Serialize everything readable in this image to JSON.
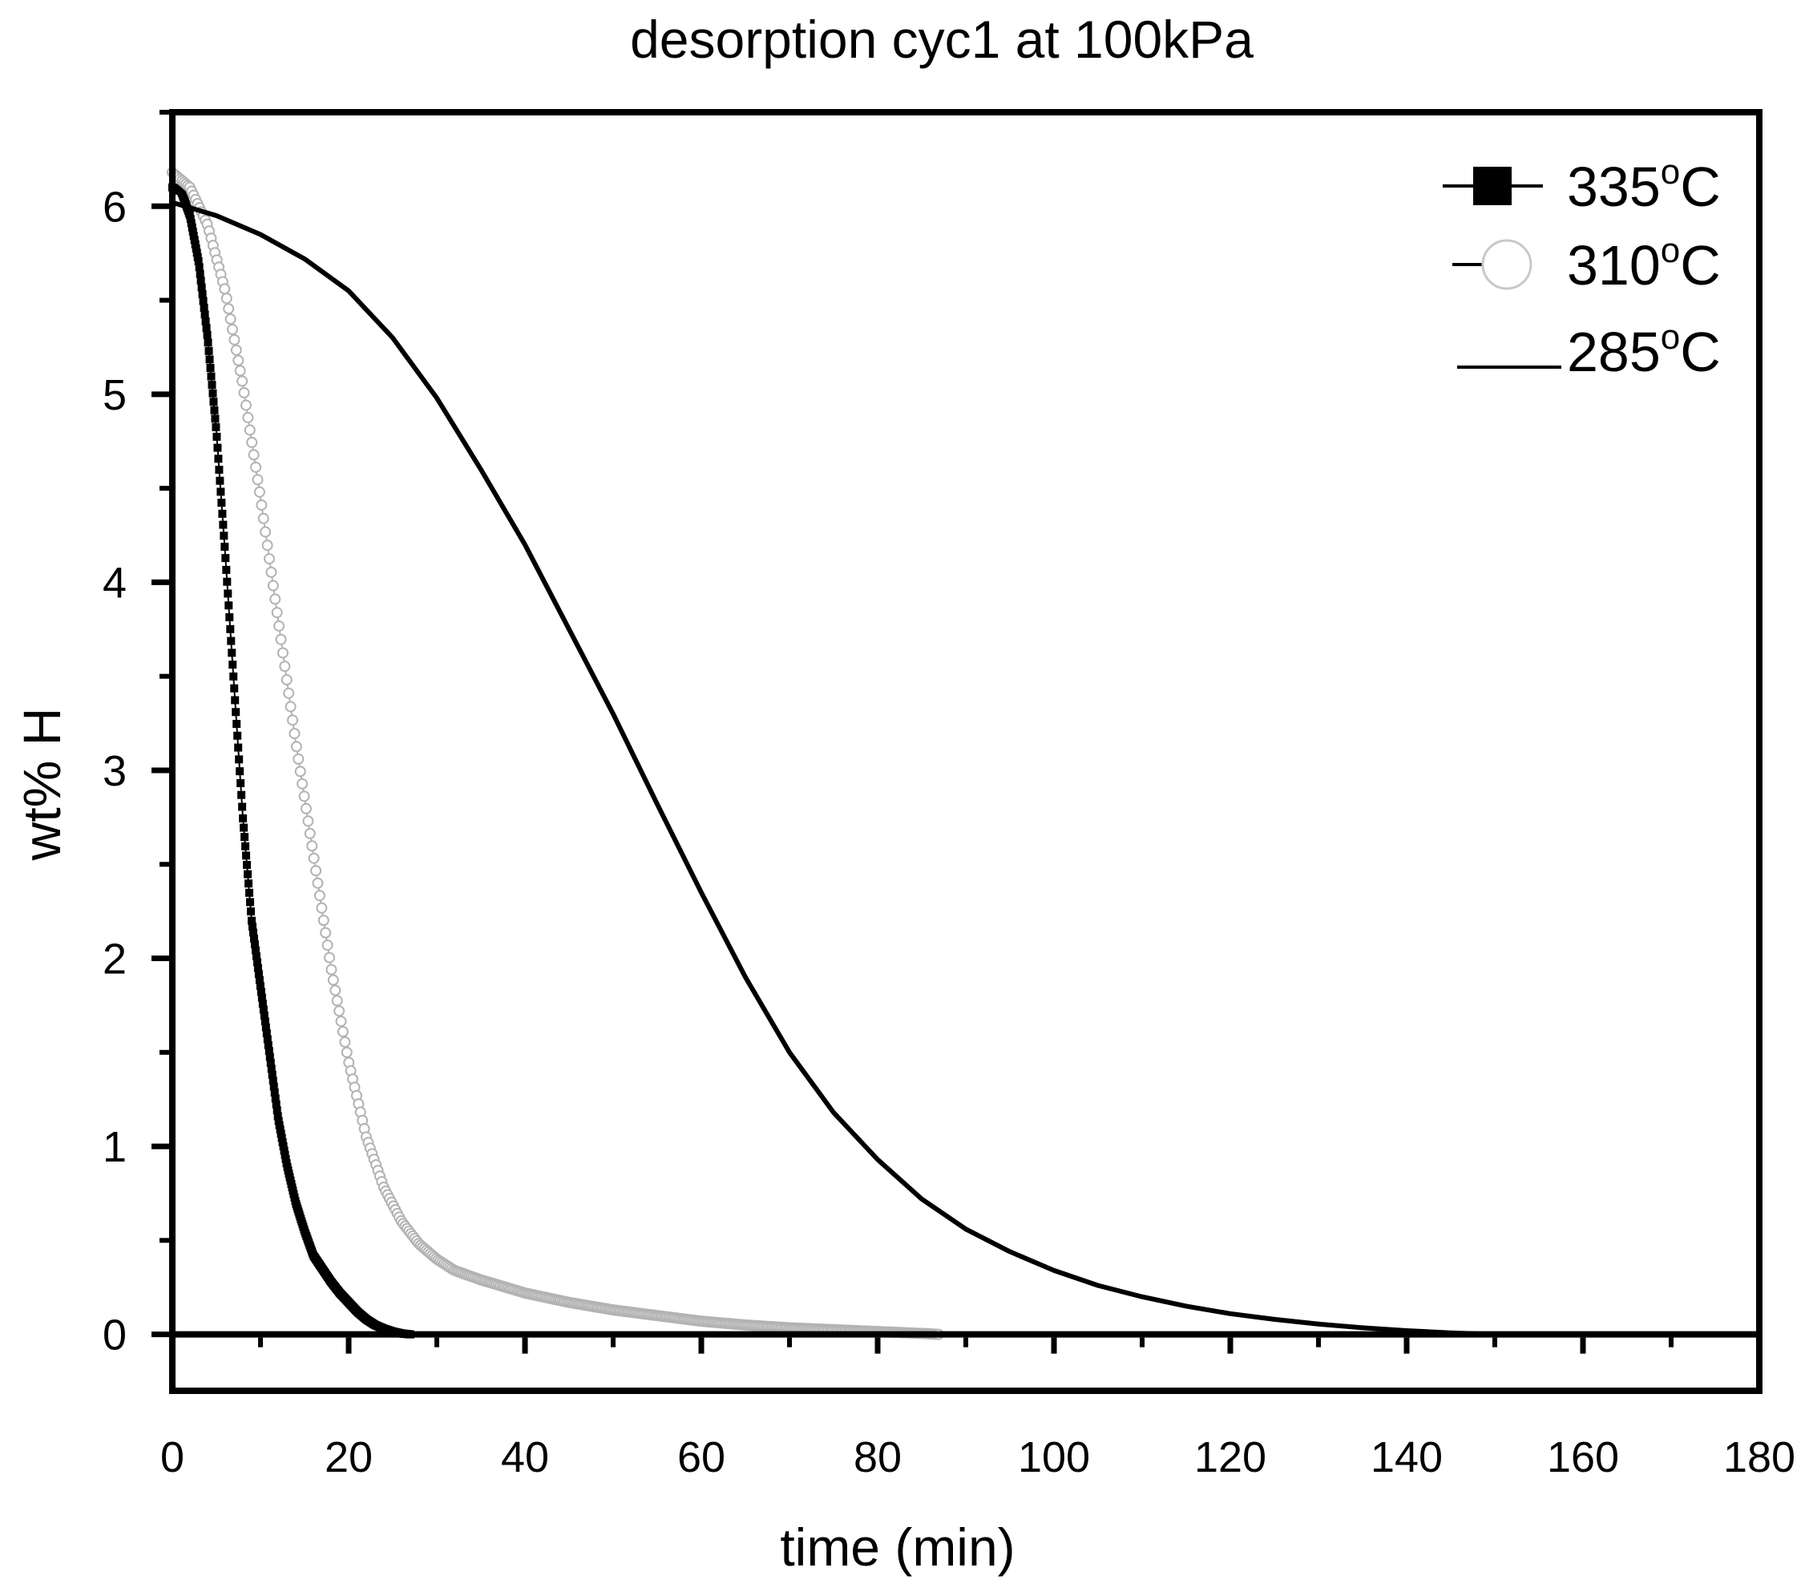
{
  "chart_data": {
    "type": "line",
    "title": "desorption cyc1 at 100kPa",
    "xlabel": "time (min)",
    "ylabel": "wt% H",
    "xlim": [
      0,
      180
    ],
    "ylim": [
      -0.3,
      6.5
    ],
    "x_ticks": [
      0,
      20,
      40,
      60,
      80,
      100,
      120,
      140,
      160,
      180
    ],
    "y_ticks": [
      0,
      1,
      2,
      3,
      4,
      5,
      6
    ],
    "x_tick_labels": [
      "0",
      "20",
      "40",
      "60",
      "80",
      "100",
      "120",
      "140",
      "160",
      "180"
    ],
    "y_tick_labels": [
      "0",
      "1",
      "2",
      "3",
      "4",
      "5",
      "6"
    ],
    "grid": false,
    "legend_position": "top-right",
    "series": [
      {
        "name": "335",
        "unit": "°C",
        "marker": "square-filled",
        "color": "#000000",
        "x": [
          0,
          1,
          2,
          3,
          4,
          5,
          6,
          7,
          8,
          9,
          10,
          11,
          12,
          13,
          14,
          15,
          16,
          17,
          18,
          19,
          20,
          21,
          22,
          23,
          24,
          25,
          26,
          27
        ],
        "y": [
          6.1,
          6.08,
          5.95,
          5.7,
          5.3,
          4.8,
          4.15,
          3.45,
          2.75,
          2.2,
          1.85,
          1.5,
          1.15,
          0.9,
          0.7,
          0.55,
          0.42,
          0.35,
          0.28,
          0.22,
          0.17,
          0.12,
          0.08,
          0.05,
          0.03,
          0.015,
          0.005,
          0.0
        ]
      },
      {
        "name": "310",
        "unit": "°C",
        "marker": "circle-open",
        "color": "#b3b3b3",
        "x": [
          0,
          2,
          4,
          6,
          8,
          10,
          12,
          14,
          16,
          18,
          20,
          22,
          24,
          26,
          28,
          30,
          32,
          35,
          40,
          45,
          50,
          55,
          60,
          65,
          70,
          75,
          80,
          85,
          87
        ],
        "y": [
          6.18,
          6.1,
          5.9,
          5.55,
          5.05,
          4.45,
          3.8,
          3.15,
          2.55,
          1.95,
          1.45,
          1.05,
          0.78,
          0.6,
          0.48,
          0.4,
          0.34,
          0.29,
          0.22,
          0.17,
          0.13,
          0.1,
          0.07,
          0.05,
          0.035,
          0.025,
          0.015,
          0.005,
          0.0
        ]
      },
      {
        "name": "285",
        "unit": "°C",
        "marker": "none",
        "color": "#000000",
        "x": [
          0,
          5,
          10,
          15,
          20,
          25,
          30,
          35,
          40,
          45,
          50,
          55,
          60,
          65,
          70,
          75,
          80,
          85,
          90,
          95,
          100,
          105,
          110,
          115,
          120,
          125,
          130,
          135,
          140,
          145,
          150
        ],
        "y": [
          6.02,
          5.95,
          5.85,
          5.72,
          5.55,
          5.3,
          4.98,
          4.6,
          4.2,
          3.75,
          3.3,
          2.82,
          2.35,
          1.9,
          1.5,
          1.18,
          0.93,
          0.72,
          0.56,
          0.44,
          0.34,
          0.26,
          0.2,
          0.15,
          0.11,
          0.08,
          0.055,
          0.035,
          0.02,
          0.008,
          0.0
        ]
      }
    ]
  }
}
